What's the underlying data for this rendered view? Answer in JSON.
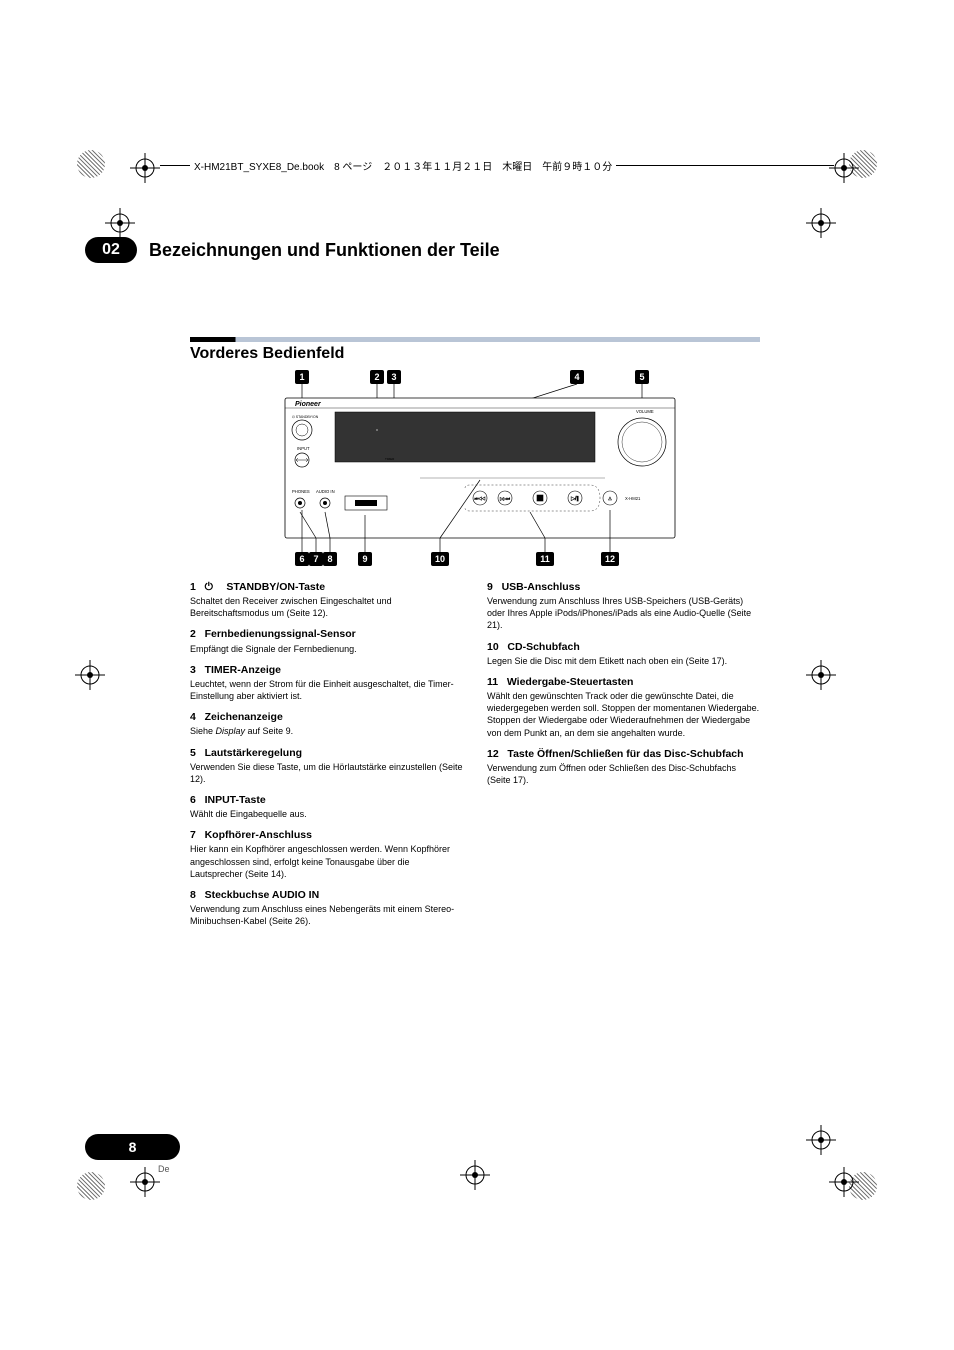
{
  "header": {
    "text": "X-HM21BT_SYXE8_De.book　8 ページ　２０１３年１１月２１日　木曜日　午前９時１０分"
  },
  "chapter": {
    "number": "02",
    "title": "Bezeichnungen und Funktionen der Teile"
  },
  "section": {
    "title": "Vorderes Bedienfeld"
  },
  "diagram": {
    "callouts_top": [
      "1",
      "2",
      "3",
      "4",
      "5"
    ],
    "callouts_bottom": [
      "6",
      "7",
      "8",
      "9",
      "10",
      "11",
      "12"
    ],
    "labels": {
      "brand": "Pioneer",
      "standby": "STANDBY/ON",
      "input": "INPUT",
      "timer": "TIMER",
      "phones": "PHONES",
      "audio_in": "AUDIO IN",
      "volume": "VOLUME",
      "model": "X-HM21"
    }
  },
  "items_left": [
    {
      "num": "1",
      "title": " STANDBY/ON-Taste",
      "body": "Schaltet den Receiver zwischen Eingeschaltet und Bereitschaftsmodus um (Seite 12).",
      "power_icon": true
    },
    {
      "num": "2",
      "title": "Fernbedienungssignal-Sensor",
      "body": "Empfängt die Signale der Fernbedienung."
    },
    {
      "num": "3",
      "title": "TIMER-Anzeige",
      "body": "Leuchtet, wenn der Strom für die Einheit ausgeschaltet, die Timer-Einstellung aber aktiviert ist."
    },
    {
      "num": "4",
      "title": "Zeichenanzeige",
      "body": "Siehe <em>Display</em> auf Seite 9."
    },
    {
      "num": "5",
      "title": "Lautstärkeregelung",
      "body": "Verwenden Sie diese Taste, um die Hörlautstärke einzustellen (Seite 12)."
    },
    {
      "num": "6",
      "title": "INPUT-Taste",
      "body": "Wählt die Eingabequelle aus."
    },
    {
      "num": "7",
      "title": "Kopfhörer-Anschluss",
      "body": "Hier kann ein Kopfhörer angeschlossen werden. Wenn Kopfhörer angeschlossen sind, erfolgt keine Tonausgabe über die Lautsprecher (Seite 14)."
    },
    {
      "num": "8",
      "title": "Steckbuchse AUDIO IN",
      "body": "Verwendung zum Anschluss eines Nebengeräts mit einem Stereo-Minibuchsen-Kabel (Seite 26)."
    }
  ],
  "items_right": [
    {
      "num": "9",
      "title": "USB-Anschluss",
      "body": "Verwendung zum Anschluss Ihres USB-Speichers (USB-Geräts) oder Ihres Apple iPods/iPhones/iPads als eine Audio-Quelle (Seite 21)."
    },
    {
      "num": "10",
      "title": "CD-Schubfach",
      "body": "Legen Sie die Disc mit dem Etikett nach oben ein (Seite 17)."
    },
    {
      "num": "11",
      "title": "Wiedergabe-Steuertasten",
      "body": "Wählt den gewünschten Track oder die gewünschte Datei, die wiedergegeben werden soll. Stoppen der momentanen Wiedergabe. Stoppen der Wiedergabe oder Wiederaufnehmen der Wiedergabe von dem Punkt an, an dem sie angehalten wurde."
    },
    {
      "num": "12",
      "title": "Taste Öffnen/Schließen für das Disc-Schubfach",
      "body": "Verwendung zum Öffnen oder Schließen des Disc-Schubfachs (Seite 17)."
    }
  ],
  "page": {
    "number": "8",
    "lang": "De"
  },
  "colors": {
    "accent_light": "#b9c5d6",
    "text": "#000000",
    "bg": "#ffffff"
  },
  "typography": {
    "body_fontsize_pt": 9,
    "heading_fontsize_pt": 10.5,
    "chapter_title_pt": 18,
    "section_title_pt": 16
  }
}
